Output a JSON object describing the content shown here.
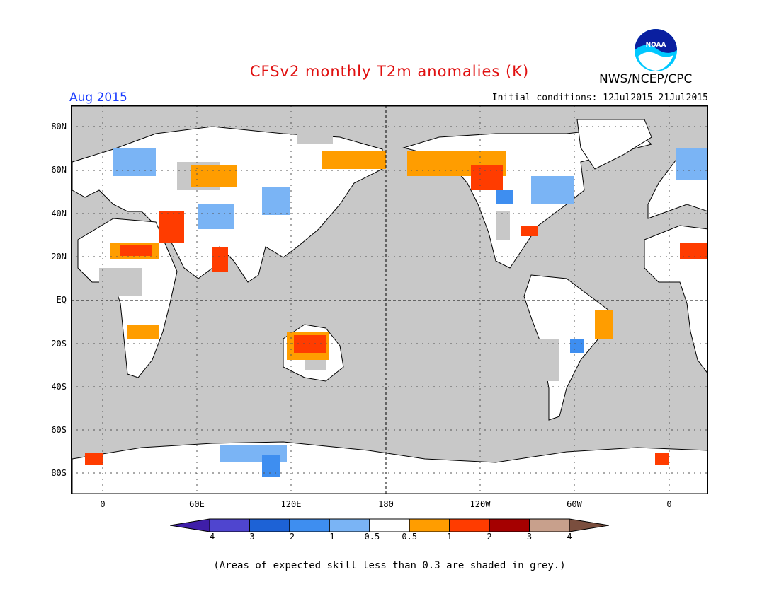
{
  "title": "CFSv2 monthly T2m anomalies (K)",
  "month": "Aug 2015",
  "initial_conditions": "Initial conditions: 12Jul2015–21Jul2015",
  "agency": "NWS/NCEP/CPC",
  "logo_text": "NOAA",
  "footnote": "(Areas of expected skill less than 0.3 are shaded in grey.)",
  "lat_labels": [
    "80N",
    "60N",
    "40N",
    "20N",
    "EQ",
    "20S",
    "40S",
    "60S",
    "80S"
  ],
  "lon_labels": [
    "0",
    "60E",
    "120E",
    "180",
    "120W",
    "60W",
    "0"
  ],
  "colorbar": {
    "labels": [
      "-4",
      "-3",
      "-2",
      "-1",
      "-0.5",
      "0.5",
      "1",
      "2",
      "3",
      "4"
    ],
    "colors": [
      "#3f1ea8",
      "#4f45cf",
      "#1d62d6",
      "#3e8ef0",
      "#7ab4f5",
      "#ffffff",
      "#ff9d00",
      "#ff3c00",
      "#a50000",
      "#c8a08c",
      "#7a4e3e"
    ]
  },
  "colors": {
    "ocean": "#c8c8c8",
    "title": "#e01010",
    "month": "#1a3cff"
  }
}
